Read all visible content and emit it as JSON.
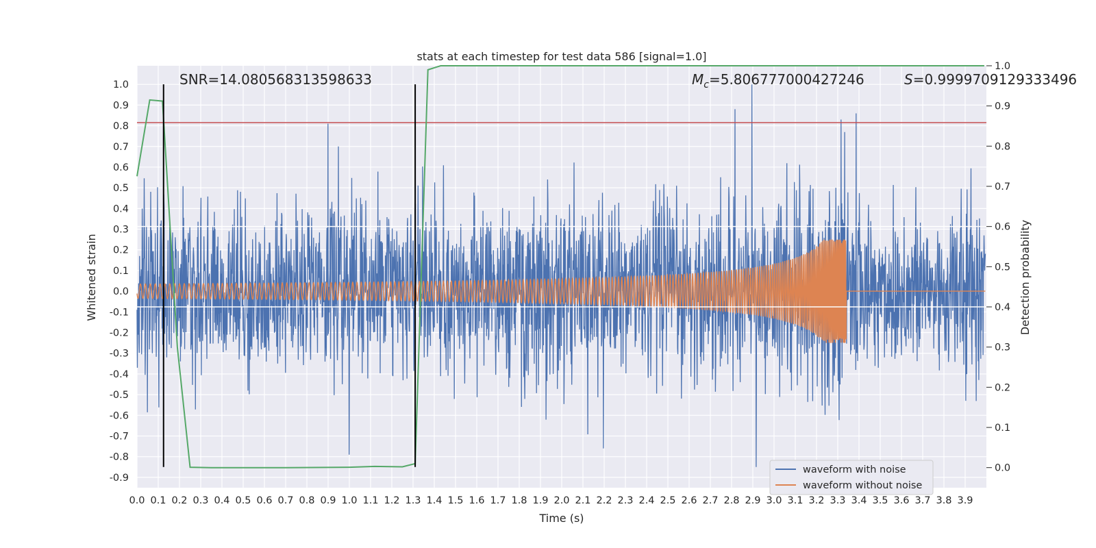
{
  "chart_data": {
    "type": "line",
    "title": "stats at each timestep for test data 586 [signal=1.0]",
    "xlabel": "Time (s)",
    "ylabel": "Whitened strain",
    "y2label": "Detection probability",
    "xlim": [
      0.0,
      4.0
    ],
    "ylim": [
      -0.95,
      1.09
    ],
    "y2lim": [
      -0.05,
      1.0
    ],
    "x_ticks": [
      0.0,
      0.1,
      0.2,
      0.3,
      0.4,
      0.5,
      0.6,
      0.7,
      0.8,
      0.9,
      1.0,
      1.1,
      1.2,
      1.3,
      1.4,
      1.5,
      1.6,
      1.7,
      1.8,
      1.9,
      2.0,
      2.1,
      2.2,
      2.3,
      2.4,
      2.5,
      2.6,
      2.7,
      2.8,
      2.9,
      3.0,
      3.1,
      3.2,
      3.3,
      3.4,
      3.5,
      3.6,
      3.7,
      3.8,
      3.9
    ],
    "y_ticks": [
      1.0,
      0.9,
      0.8,
      0.7,
      0.6,
      0.5,
      0.4,
      0.3,
      0.2,
      0.1,
      0.0,
      -0.1,
      -0.2,
      -0.3,
      -0.4,
      -0.5,
      -0.6,
      -0.7,
      -0.8,
      -0.9
    ],
    "y2_ticks": [
      1.0,
      0.9,
      0.8,
      0.7,
      0.6,
      0.5,
      0.4,
      0.3,
      0.2,
      0.1,
      0.0
    ],
    "grid": true,
    "legend_position": "lower-right",
    "annotations": {
      "snr": "SNR=14.080568313598633",
      "mc_symbol": "M",
      "mc_sub": "c",
      "mc_value": "=5.806777000427246",
      "s_symbol": "S",
      "s_value": "=0.9999709129333496"
    },
    "series": [
      {
        "name": "waveform with noise",
        "color": "#4c72b0",
        "axis": "left",
        "description_amplitude_std": 0.2,
        "peak_points": [
          {
            "x": 0.9,
            "y": 0.81
          },
          {
            "x": 0.95,
            "y": 0.7
          },
          {
            "x": 1.0,
            "y": -0.79
          },
          {
            "x": 2.82,
            "y": 0.88
          },
          {
            "x": 2.9,
            "y": 1.0
          },
          {
            "x": 2.92,
            "y": -0.85
          },
          {
            "x": 3.32,
            "y": 0.83
          },
          {
            "x": 3.39,
            "y": 0.86
          },
          {
            "x": 2.2,
            "y": -0.76
          }
        ]
      },
      {
        "name": "waveform without noise",
        "color": "#dd8452",
        "axis": "left",
        "merger_time": 3.34,
        "peak_amplitude": 0.25,
        "initial_amplitude": 0.035
      },
      {
        "name": "",
        "color": "#55a868",
        "axis": "right",
        "x": [
          0.0,
          0.06,
          0.12,
          0.19,
          0.25,
          0.35,
          0.5,
          0.7,
          1.0,
          1.12,
          1.25,
          1.31,
          1.37,
          1.43,
          2.0,
          3.0,
          3.99
        ],
        "y": [
          0.725,
          0.915,
          0.912,
          0.3,
          0.001,
          0.0,
          0.0,
          0.0,
          0.001,
          0.003,
          0.002,
          0.01,
          0.99,
          1.0,
          1.0,
          1.0,
          1.0
        ]
      },
      {
        "name": "",
        "color": "#c44e52",
        "axis": "left",
        "type": "hline",
        "y": 0.815
      },
      {
        "name": "",
        "color": "#ffffff",
        "axis": "right",
        "type": "hline",
        "y": 0.6
      },
      {
        "name": "",
        "color": "#ffffff",
        "axis": "right",
        "type": "hline",
        "y": 0.4
      }
    ],
    "vlines": [
      {
        "x": 0.125,
        "y_from": -0.85,
        "y_to": 1.0,
        "color": "#000000"
      },
      {
        "x": 1.31,
        "y_from": -0.85,
        "y_to": 1.0,
        "color": "#000000"
      }
    ]
  }
}
